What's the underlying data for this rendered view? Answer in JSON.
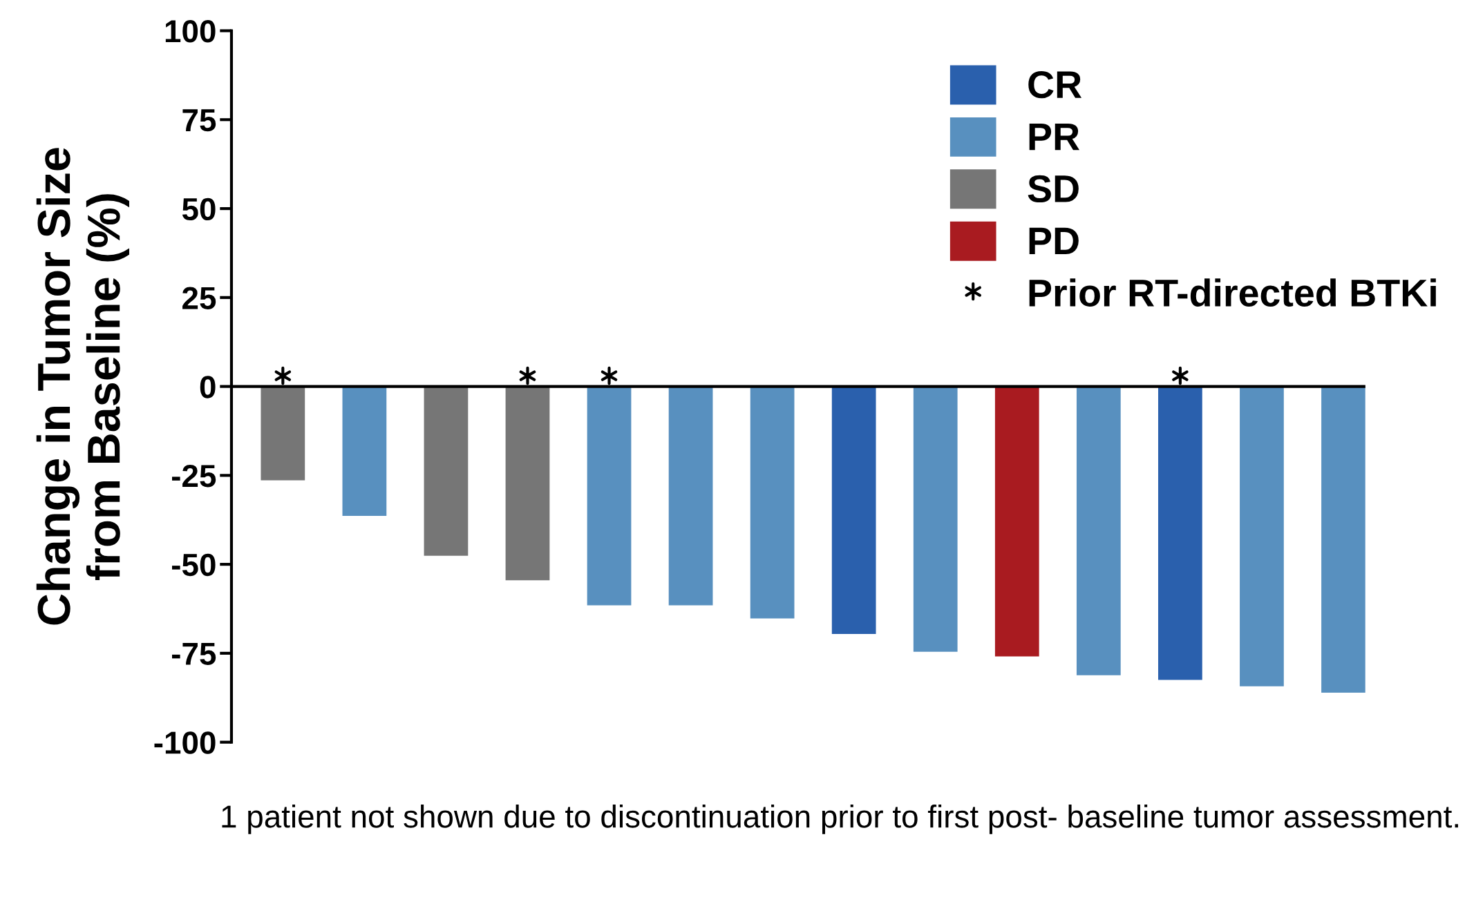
{
  "chart_data": {
    "type": "bar",
    "ylabel": "Change in Tumor Size\nfrom Baseline (%)",
    "categories": [
      null,
      null,
      null,
      null,
      null,
      null,
      null,
      null,
      null,
      null,
      null,
      null,
      null,
      null
    ],
    "series": [
      {
        "name": "CR",
        "color": "#2a60ad",
        "values": [
          null,
          null,
          null,
          null,
          null,
          null,
          null,
          -69.6,
          null,
          null,
          null,
          -82.5,
          null,
          null
        ]
      },
      {
        "name": "PR",
        "color": "#5890bf",
        "values": [
          null,
          -36.4,
          null,
          null,
          -61.5,
          -61.5,
          -65.2,
          null,
          -74.6,
          null,
          -81.2,
          null,
          -84.3,
          -86.1
        ]
      },
      {
        "name": "SD",
        "color": "#767676",
        "values": [
          -26.4,
          null,
          -47.6,
          -54.5,
          null,
          null,
          null,
          null,
          null,
          null,
          null,
          null,
          null,
          null
        ]
      },
      {
        "name": "PD",
        "color": "#a91b20",
        "values": [
          null,
          null,
          null,
          null,
          null,
          null,
          null,
          null,
          null,
          -75.9,
          null,
          null,
          null,
          null
        ]
      },
      {
        "name": "Prior RT-directed BTKi",
        "type": "scatter",
        "marker": "cross",
        "color": "#000000",
        "values": [
          3,
          null,
          null,
          3,
          3,
          null,
          null,
          null,
          null,
          null,
          null,
          3,
          null,
          null
        ]
      }
    ],
    "ylim": [
      -100,
      100
    ],
    "yticks": [
      -100,
      -75,
      -50,
      -25,
      0,
      25,
      50,
      75,
      100
    ],
    "legend": "top right",
    "ref_lines": [
      {
        "axis": "y",
        "value": 0,
        "color": "#000000"
      }
    ],
    "annotations": [
      "1 patient not shown due to discontinuation prior to first post- baseline tumor assessment."
    ]
  }
}
